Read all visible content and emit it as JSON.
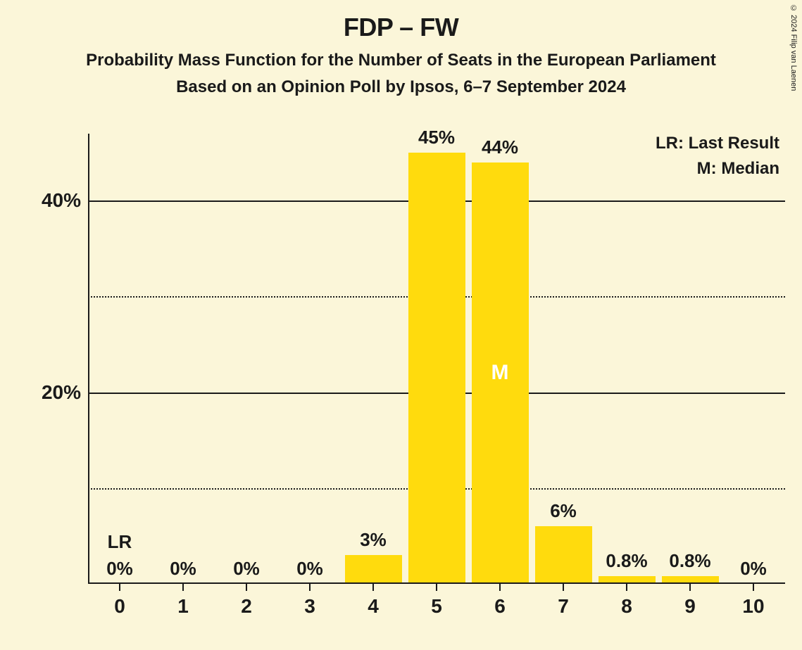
{
  "title": "FDP – FW",
  "subtitle1": "Probability Mass Function for the Number of Seats in the European Parliament",
  "subtitle2": "Based on an Opinion Poll by Ipsos, 6–7 September 2024",
  "copyright": "© 2024 Filip van Laenen",
  "legend": {
    "lr": "LR: Last Result",
    "m": "M: Median"
  },
  "chart": {
    "type": "bar",
    "background_color": "#fbf6d9",
    "bar_color": "#ffdb0d",
    "axis_color": "#1a1a1a",
    "grid_color": "#1a1a1a",
    "median_text_color": "#ffffff",
    "font_family": "Segoe UI",
    "title_fontsize": 36,
    "subtitle_fontsize": 24,
    "axis_label_fontsize": 28,
    "bar_label_fontsize": 26,
    "ylim": [
      0,
      47
    ],
    "y_axis": {
      "ticks": [
        {
          "value": 10,
          "label": "",
          "style": "dotted"
        },
        {
          "value": 20,
          "label": "20%",
          "style": "solid"
        },
        {
          "value": 30,
          "label": "",
          "style": "dotted"
        },
        {
          "value": 40,
          "label": "40%",
          "style": "solid"
        }
      ]
    },
    "categories": [
      "0",
      "1",
      "2",
      "3",
      "4",
      "5",
      "6",
      "7",
      "8",
      "9",
      "10"
    ],
    "values": [
      0,
      0,
      0,
      0,
      3,
      45,
      44,
      6,
      0.8,
      0.8,
      0
    ],
    "value_labels": [
      "0%",
      "0%",
      "0%",
      "0%",
      "3%",
      "45%",
      "44%",
      "6%",
      "0.8%",
      "0.8%",
      "0%"
    ],
    "last_result_index": 0,
    "last_result_text": "LR",
    "median_index": 6,
    "median_text": "M",
    "bar_width_ratio": 0.9
  }
}
